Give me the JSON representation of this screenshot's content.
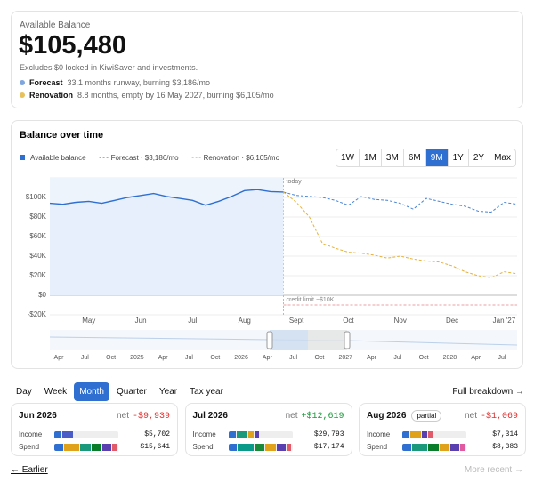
{
  "balance_card": {
    "label": "Available Balance",
    "amount": "$105,480",
    "note": "Excludes $0 locked in KiwiSaver and investments.",
    "scenarios": [
      {
        "name": "Forecast",
        "detail": "33.1 months runway, burning $3,186/mo",
        "color": "#7ea6e0"
      },
      {
        "name": "Renovation",
        "detail": "8.8 months, empty by 16 May 2027, burning $6,105/mo",
        "color": "#e8c15a"
      }
    ]
  },
  "range_buttons": {
    "options": [
      "1W",
      "1M",
      "3M",
      "6M",
      "9M",
      "1Y",
      "2Y",
      "Max"
    ],
    "active_index": 4
  },
  "chart_data": {
    "type": "line",
    "title": "Balance over time",
    "categories": [
      null,
      null,
      null,
      "May",
      null,
      null,
      null,
      "Jun",
      null,
      null,
      null,
      "Jul",
      null,
      null,
      null,
      "Aug",
      null,
      null,
      null,
      "Sept",
      null,
      null,
      null,
      "Oct",
      null,
      null,
      null,
      "Nov",
      null,
      null,
      null,
      "Dec",
      null,
      null,
      null,
      "Jan '27",
      null
    ],
    "series": [
      {
        "name": "Available balance",
        "color": "#2f6fd1",
        "style": "solid",
        "area": true,
        "values": [
          94000,
          93000,
          95000,
          96000,
          94000,
          97000,
          100000,
          102000,
          104000,
          101000,
          99000,
          97000,
          92000,
          96000,
          101000,
          107000,
          108000,
          106000,
          105480,
          null,
          null,
          null,
          null,
          null,
          null,
          null,
          null,
          null,
          null,
          null,
          null,
          null,
          null,
          null,
          null,
          null,
          null
        ]
      },
      {
        "name": "Forecast · $3,186/mo",
        "color": "#4a86d8",
        "style": "dashed",
        "values": [
          null,
          null,
          null,
          null,
          null,
          null,
          null,
          null,
          null,
          null,
          null,
          null,
          null,
          null,
          null,
          null,
          null,
          null,
          105480,
          102000,
          101000,
          100000,
          97000,
          92000,
          101000,
          98000,
          97000,
          94000,
          88000,
          99000,
          96000,
          93000,
          91000,
          86000,
          85000,
          95000,
          93000
        ]
      },
      {
        "name": "Renovation · $6,105/mo",
        "color": "#e8b23a",
        "style": "dashed",
        "values": [
          null,
          null,
          null,
          null,
          null,
          null,
          null,
          null,
          null,
          null,
          null,
          null,
          null,
          null,
          null,
          null,
          null,
          null,
          105480,
          95000,
          80000,
          53000,
          48000,
          44000,
          43000,
          41000,
          38000,
          40000,
          37000,
          35000,
          34000,
          30000,
          24000,
          20000,
          18000,
          24000,
          22000
        ]
      }
    ],
    "ylim": [
      -20000,
      120000
    ],
    "yticks": [
      {
        "value": -20000,
        "label": "-$20K"
      },
      {
        "value": 0,
        "label": "$0"
      },
      {
        "value": 20000,
        "label": "$20K"
      },
      {
        "value": 40000,
        "label": "$40K"
      },
      {
        "value": 60000,
        "label": "$60K"
      },
      {
        "value": 80000,
        "label": "$80K"
      },
      {
        "value": 100000,
        "label": "$100K"
      }
    ],
    "grid": true,
    "today": {
      "text": "today",
      "x": 18
    },
    "credit_limit": {
      "text": "credit limit −$10K",
      "y": -10000
    }
  },
  "navigator": {
    "labels": [
      "Apr",
      "Jul",
      "Oct",
      "2025",
      "Apr",
      "Jul",
      "Oct",
      "2026",
      "Apr",
      "Jul",
      "Oct",
      "2027",
      "Apr",
      "Jul",
      "Oct",
      "2028",
      "Apr",
      "Jul"
    ]
  },
  "period_tabs": {
    "options": [
      "Day",
      "Week",
      "Month",
      "Quarter",
      "Year",
      "Tax year"
    ],
    "active_index": 2,
    "link": "Full breakdown →"
  },
  "months": [
    {
      "title": "Jun 2026",
      "net_label": "net",
      "net": "-$9,939",
      "rows": [
        {
          "label": "Income",
          "amount": "$5,702"
        },
        {
          "label": "Spend",
          "amount": "$15,641"
        }
      ]
    },
    {
      "title": "Jul 2026",
      "net_label": "net",
      "net": "+$12,619",
      "rows": [
        {
          "label": "Income",
          "amount": "$29,793"
        },
        {
          "label": "Spend",
          "amount": "$17,174"
        }
      ]
    },
    {
      "title": "Aug 2026",
      "badge": "partial",
      "net_label": "net",
      "net": "-$1,069",
      "rows": [
        {
          "label": "Income",
          "amount": "$7,314"
        },
        {
          "label": "Spend",
          "amount": "$8,383"
        }
      ]
    }
  ],
  "footer": {
    "prev": "← Earlier",
    "next": "More recent →"
  }
}
